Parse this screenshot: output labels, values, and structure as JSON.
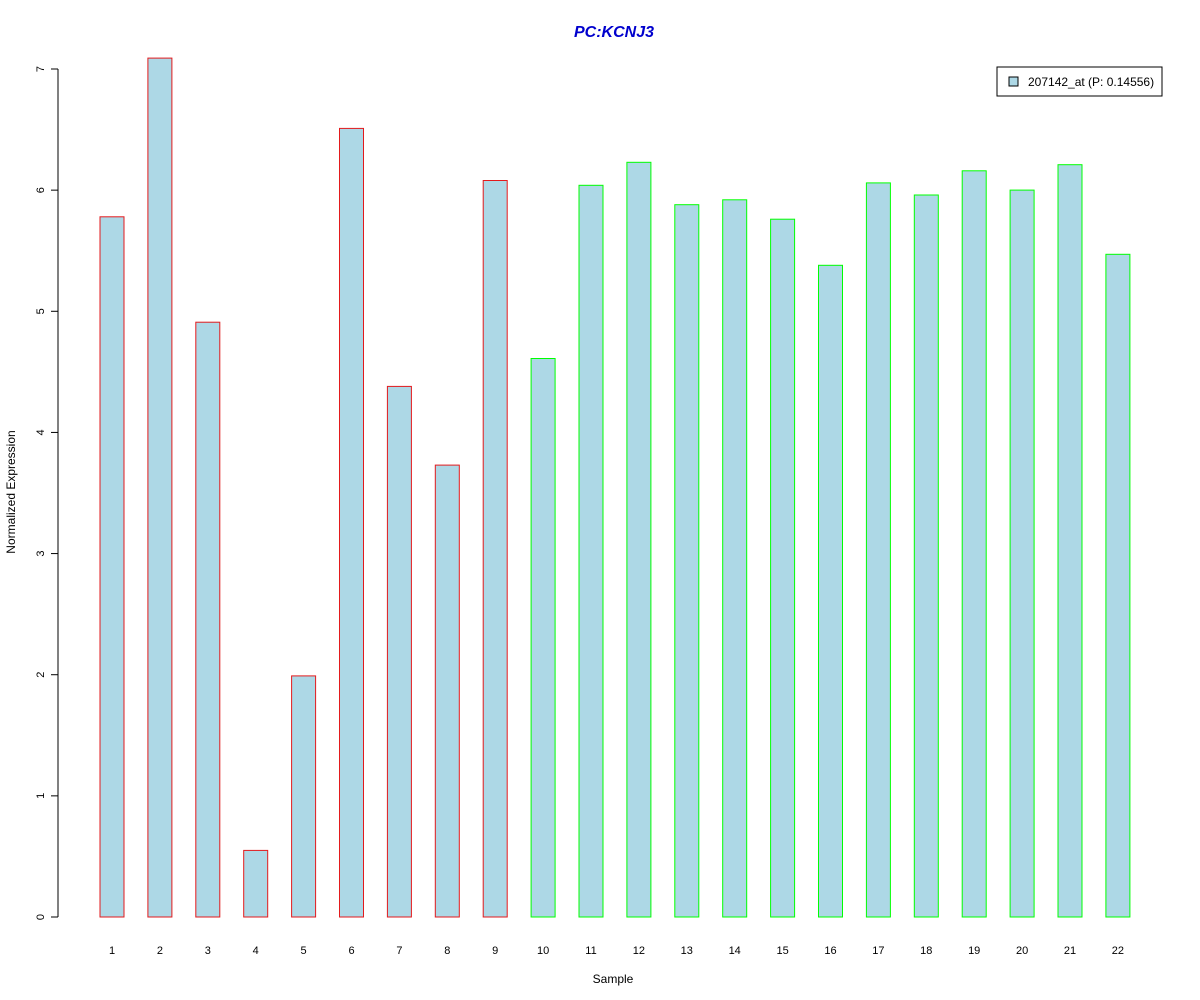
{
  "chart_data": {
    "type": "bar",
    "title": "PC:KCNJ3",
    "xlabel": "Sample",
    "ylabel": "Normalized Expression",
    "ylim": [
      0,
      7
    ],
    "y_ticks": [
      0,
      1,
      2,
      3,
      4,
      5,
      6,
      7
    ],
    "grid": false,
    "categories": [
      "1",
      "2",
      "3",
      "4",
      "5",
      "6",
      "7",
      "8",
      "9",
      "10",
      "11",
      "12",
      "13",
      "14",
      "15",
      "16",
      "17",
      "18",
      "19",
      "20",
      "21",
      "22"
    ],
    "series": [
      {
        "name": "207142_at (P: 0.14556)",
        "values": [
          5.78,
          7.09,
          4.91,
          0.55,
          1.99,
          6.51,
          4.38,
          3.73,
          6.08,
          4.61,
          6.04,
          6.23,
          5.88,
          5.92,
          5.76,
          5.38,
          6.06,
          5.96,
          6.16,
          6.0,
          6.21,
          5.47
        ]
      }
    ],
    "groups": [
      {
        "samples": 9,
        "border_color": "#e31a1c"
      },
      {
        "samples": 13,
        "border_color": "#00ff00"
      }
    ],
    "bar_fill": "#add8e6",
    "title_color": "#0000cd",
    "legend": {
      "position": "top-right",
      "entry": "207142_at (P: 0.14556)"
    }
  }
}
